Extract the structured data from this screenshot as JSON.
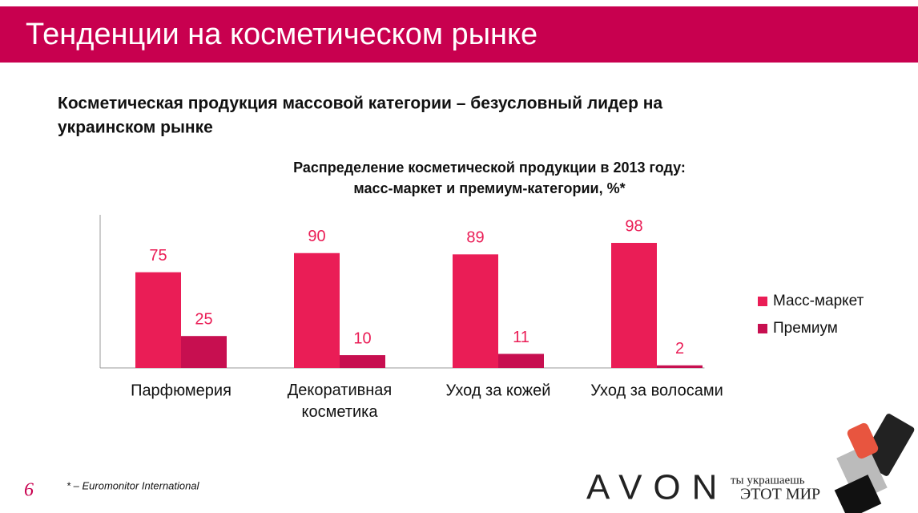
{
  "header": {
    "title": "Тенденции на косметическом рынке"
  },
  "subtitle": [
    "Косметическая продукция массовой категории – безусловный лидер на",
    "украинском рынке"
  ],
  "chart_data": {
    "type": "bar",
    "title": [
      "Распределение косметической продукции в 2013 году:",
      "масс-маркет и премиум-категории, %*"
    ],
    "categories": [
      "Парфюмерия",
      "Декоративная косметика",
      "Уход за кожей",
      "Уход за волосами"
    ],
    "series": [
      {
        "name": "Масс-маркет",
        "color": "#ea1d56",
        "values": [
          75,
          90,
          89,
          98
        ]
      },
      {
        "name": "Премиум",
        "color": "#c70f50",
        "values": [
          25,
          10,
          11,
          2
        ]
      }
    ],
    "ylim": [
      0,
      120
    ],
    "legend": "right"
  },
  "footer": {
    "page": "6",
    "note": "* – Euromonitor International",
    "brand": "AVON",
    "slogan": [
      "ты украшаешь",
      "ЭТОТ МИР"
    ]
  }
}
